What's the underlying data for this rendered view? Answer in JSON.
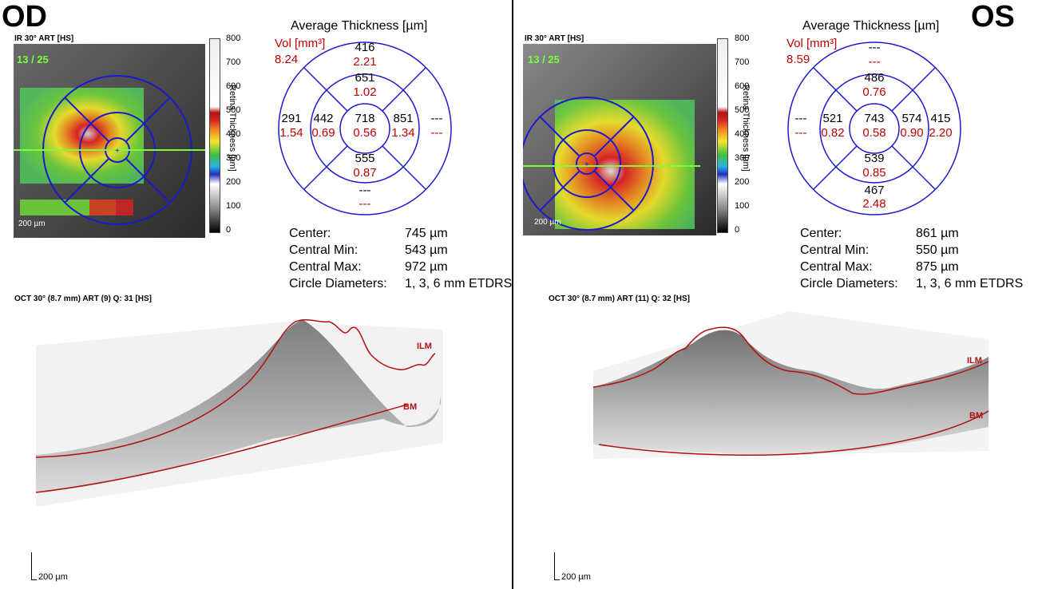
{
  "od": {
    "eye_label": "OD",
    "ir_header": "IR 30° ART [HS]",
    "frame_counter": "13 / 25",
    "fundus_scale": "200 µm",
    "colorbar": {
      "ticks": [
        "800",
        "700",
        "600",
        "500",
        "400",
        "300",
        "200",
        "100",
        "0"
      ],
      "title": "Retina Thickness [µm]"
    },
    "etdrs_title": "Average Thickness [µm]",
    "vol_label": "Vol [mm³]",
    "vol_total": "8.24",
    "cells": {
      "outer_sup": {
        "thk": "416",
        "vol": "2.21"
      },
      "inner_sup": {
        "thk": "651",
        "vol": "1.02"
      },
      "outer_temp": {
        "thk": "291",
        "vol": "1.54"
      },
      "inner_temp": {
        "thk": "442",
        "vol": "0.69"
      },
      "center": {
        "thk": "718",
        "vol": "0.56"
      },
      "inner_nasal": {
        "thk": "851",
        "vol": "1.34"
      },
      "outer_nasal": {
        "thk": "---",
        "vol": "---"
      },
      "inner_inf": {
        "thk": "555",
        "vol": "0.87"
      },
      "outer_inf": {
        "thk": "---",
        "vol": "---"
      }
    },
    "stats": {
      "center_label": "Center:",
      "center_value": "745 µm",
      "min_label": "Central Min:",
      "min_value": "543 µm",
      "max_label": "Central Max:",
      "max_value": "972 µm",
      "diam_label": "Circle Diameters:",
      "diam_value": "1, 3, 6 mm ETDRS"
    },
    "oct_header": "OCT 30° (8.7 mm) ART (9) Q: 31 [HS]",
    "ilm_label": "ILM",
    "bm_label": "BM",
    "oct_scale": "200 µm"
  },
  "os": {
    "eye_label": "OS",
    "ir_header": "IR 30° ART [HS]",
    "frame_counter": "13 / 25",
    "fundus_scale": "200 µm",
    "colorbar": {
      "ticks": [
        "800",
        "700",
        "600",
        "500",
        "400",
        "300",
        "200",
        "100",
        "0"
      ],
      "title": "Retina Thickness [µm]"
    },
    "etdrs_title": "Average Thickness [µm]",
    "vol_label": "Vol [mm³]",
    "vol_total": "8.59",
    "cells": {
      "outer_sup": {
        "thk": "---",
        "vol": "---"
      },
      "inner_sup": {
        "thk": "486",
        "vol": "0.76"
      },
      "outer_temp": {
        "thk": "---",
        "vol": "---"
      },
      "inner_temp": {
        "thk": "521",
        "vol": "0.82"
      },
      "center": {
        "thk": "743",
        "vol": "0.58"
      },
      "inner_nasal": {
        "thk": "574",
        "vol": "0.90"
      },
      "outer_nasal": {
        "thk": "415",
        "vol": "2.20"
      },
      "inner_inf": {
        "thk": "539",
        "vol": "0.85"
      },
      "outer_inf": {
        "thk": "467",
        "vol": "2.48"
      }
    },
    "stats": {
      "center_label": "Center:",
      "center_value": "861 µm",
      "min_label": "Central Min:",
      "min_value": "550 µm",
      "max_label": "Central Max:",
      "max_value": "875 µm",
      "diam_label": "Circle Diameters:",
      "diam_value": "1, 3, 6 mm ETDRS"
    },
    "oct_header": "OCT 30° (8.7 mm) ART (11) Q: 32 [HS]",
    "ilm_label": "ILM",
    "bm_label": "BM",
    "oct_scale": "200 µm"
  },
  "colors": {
    "etdrs_grid": "#1a1acc",
    "volume_text": "#c00000",
    "ilm_line": "#b01010",
    "frame_counter": "#7cff3a",
    "scan_line": "#7cff3a"
  }
}
